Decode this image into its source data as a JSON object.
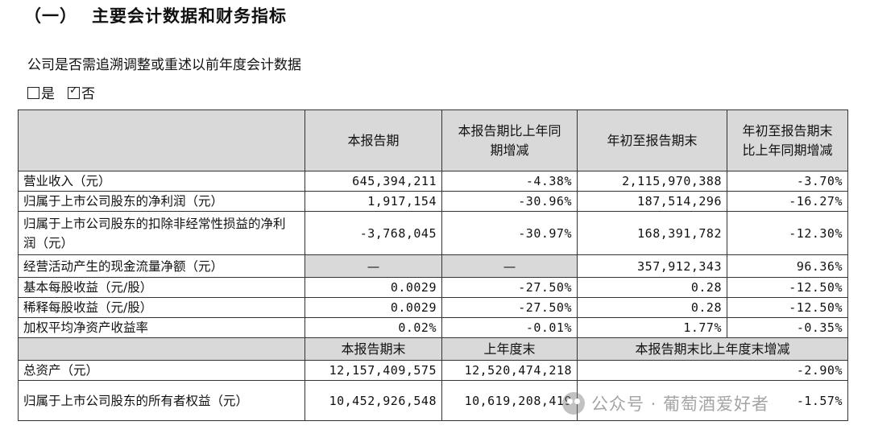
{
  "heading": {
    "number": "（一）",
    "title": "主要会计数据和财务指标"
  },
  "subtitle": "公司是否需追溯调整或重述以前年度会计数据",
  "options": [
    {
      "label": "是",
      "checked": false
    },
    {
      "label": "否",
      "checked": true
    }
  ],
  "table": {
    "header1": [
      "本报告期",
      "本报告期比上年同期增减",
      "年初至报告期末",
      "年初至报告期末比上年同期增减"
    ],
    "rows1": [
      {
        "label": "营业收入（元）",
        "cells": [
          "645,394,211",
          "-4.38%",
          "2,115,970,388",
          "-3.70%"
        ]
      },
      {
        "label": "归属于上市公司股东的净利润（元）",
        "cells": [
          "1,917,154",
          "-30.96%",
          "187,514,296",
          "-16.27%"
        ]
      },
      {
        "label": "归属于上市公司股东的扣除非经常性损益的净利润（元）",
        "cells": [
          "-3,768,045",
          "-30.97%",
          "168,391,782",
          "-12.30%"
        ]
      },
      {
        "label": "经营活动产生的现金流量净额（元）",
        "cells": [
          "—",
          "—",
          "357,912,343",
          "96.36%"
        ]
      },
      {
        "label": "基本每股收益（元/股）",
        "cells": [
          "0.0029",
          "-27.50%",
          "0.28",
          "-12.50%"
        ]
      },
      {
        "label": "稀释每股收益（元/股）",
        "cells": [
          "0.0029",
          "-27.50%",
          "0.28",
          "-12.50%"
        ]
      },
      {
        "label": "加权平均净资产收益率",
        "cells": [
          "0.02%",
          "-0.01%",
          "1.77%",
          "-0.35%"
        ]
      }
    ],
    "header2": [
      "本报告期末",
      "上年度末",
      "本报告期末比上年度末增减"
    ],
    "rows2": [
      {
        "label": "总资产（元）",
        "cells": [
          "12,157,409,575",
          "12,520,474,218",
          "-2.90%"
        ]
      },
      {
        "label": "归属于上市公司股东的所有者权益（元）",
        "cells": [
          "10,452,926,548",
          "10,619,208,419",
          "-1.57%"
        ]
      }
    ]
  },
  "watermark": "公众号 · 葡萄酒爱好者"
}
